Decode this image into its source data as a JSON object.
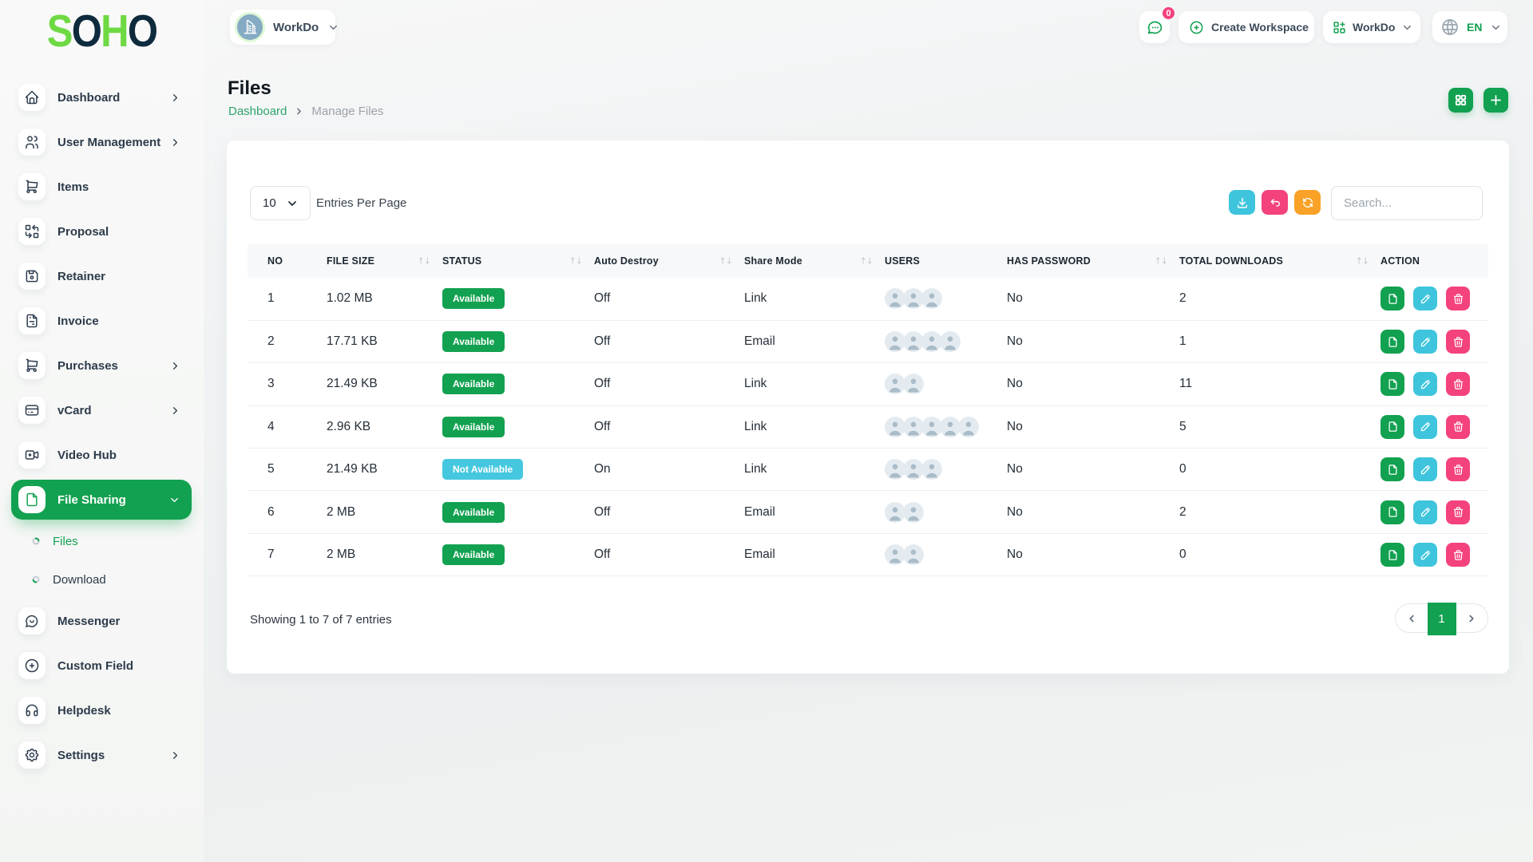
{
  "brand": {
    "letters": [
      {
        "ch": "S",
        "color": "#6FD943"
      },
      {
        "ch": "O",
        "color": "#0E2A3D"
      },
      {
        "ch": "H",
        "color": "#6FD943"
      },
      {
        "ch": "O",
        "color": "#0E2A3D"
      }
    ]
  },
  "topbar": {
    "workspace_name": "WorkDo",
    "messages_badge": "0",
    "create_workspace_label": "Create Workspace",
    "workspace_menu_label": "WorkDo",
    "language": "EN"
  },
  "page": {
    "title": "Files",
    "breadcrumb_home": "Dashboard",
    "breadcrumb_current": "Manage Files"
  },
  "sidebar": {
    "items": [
      {
        "label": "Dashboard",
        "icon": "home",
        "chevron": "right"
      },
      {
        "label": "User Management",
        "icon": "users",
        "chevron": "right"
      },
      {
        "label": "Items",
        "icon": "cart",
        "chevron": ""
      },
      {
        "label": "Proposal",
        "icon": "replace",
        "chevron": ""
      },
      {
        "label": "Retainer",
        "icon": "floppy",
        "chevron": ""
      },
      {
        "label": "Invoice",
        "icon": "invoice",
        "chevron": ""
      },
      {
        "label": "Purchases",
        "icon": "cart",
        "chevron": "right"
      },
      {
        "label": "vCard",
        "icon": "card",
        "chevron": "right"
      },
      {
        "label": "Video Hub",
        "icon": "video",
        "chevron": ""
      },
      {
        "label": "File Sharing",
        "icon": "file",
        "chevron": "down",
        "active": true,
        "children": [
          {
            "label": "Files",
            "active": true
          },
          {
            "label": "Download",
            "active": false
          }
        ]
      },
      {
        "label": "Messenger",
        "icon": "message",
        "chevron": ""
      },
      {
        "label": "Custom Field",
        "icon": "circle-plus",
        "chevron": ""
      },
      {
        "label": "Helpdesk",
        "icon": "headset",
        "chevron": ""
      },
      {
        "label": "Settings",
        "icon": "gear",
        "chevron": "right"
      }
    ]
  },
  "toolbar": {
    "entries_value": "10",
    "entries_label": "Entries Per Page",
    "search_placeholder": "Search..."
  },
  "table": {
    "columns": [
      {
        "label": "NO",
        "sortable": false
      },
      {
        "label": "FILE SIZE",
        "sortable": true
      },
      {
        "label": "STATUS",
        "sortable": true
      },
      {
        "label": "Auto Destroy",
        "sortable": true
      },
      {
        "label": "Share Mode",
        "sortable": true
      },
      {
        "label": "USERS",
        "sortable": false
      },
      {
        "label": "HAS PASSWORD",
        "sortable": true
      },
      {
        "label": "TOTAL DOWNLOADS",
        "sortable": true
      },
      {
        "label": "ACTION",
        "sortable": false
      }
    ],
    "rows": [
      {
        "no": "1",
        "file_size": "1.02 MB",
        "status": "Available",
        "status_type": "available",
        "auto_destroy": "Off",
        "share_mode": "Link",
        "users": 3,
        "has_password": "No",
        "total_downloads": "2"
      },
      {
        "no": "2",
        "file_size": "17.71 KB",
        "status": "Available",
        "status_type": "available",
        "auto_destroy": "Off",
        "share_mode": "Email",
        "users": 4,
        "has_password": "No",
        "total_downloads": "1"
      },
      {
        "no": "3",
        "file_size": "21.49 KB",
        "status": "Available",
        "status_type": "available",
        "auto_destroy": "Off",
        "share_mode": "Link",
        "users": 2,
        "has_password": "No",
        "total_downloads": "11"
      },
      {
        "no": "4",
        "file_size": "2.96 KB",
        "status": "Available",
        "status_type": "available",
        "auto_destroy": "Off",
        "share_mode": "Link",
        "users": 5,
        "has_password": "No",
        "total_downloads": "5"
      },
      {
        "no": "5",
        "file_size": "21.49 KB",
        "status": "Not Available",
        "status_type": "not-available",
        "auto_destroy": "On",
        "share_mode": "Link",
        "users": 3,
        "has_password": "No",
        "total_downloads": "0"
      },
      {
        "no": "6",
        "file_size": "2 MB",
        "status": "Available",
        "status_type": "available",
        "auto_destroy": "Off",
        "share_mode": "Email",
        "users": 2,
        "has_password": "No",
        "total_downloads": "2"
      },
      {
        "no": "7",
        "file_size": "2 MB",
        "status": "Available",
        "status_type": "available",
        "auto_destroy": "Off",
        "share_mode": "Email",
        "users": 2,
        "has_password": "No",
        "total_downloads": "0"
      }
    ]
  },
  "footer": {
    "summary": "Showing 1 to 7 of 7 entries",
    "current_page": "1"
  },
  "colors": {
    "primary_green": "#12A150",
    "logo_lime": "#6FD943",
    "logo_navy": "#0E2A3D",
    "teal": "#3EC5DD",
    "pink": "#F4427C",
    "orange": "#F9A227"
  }
}
